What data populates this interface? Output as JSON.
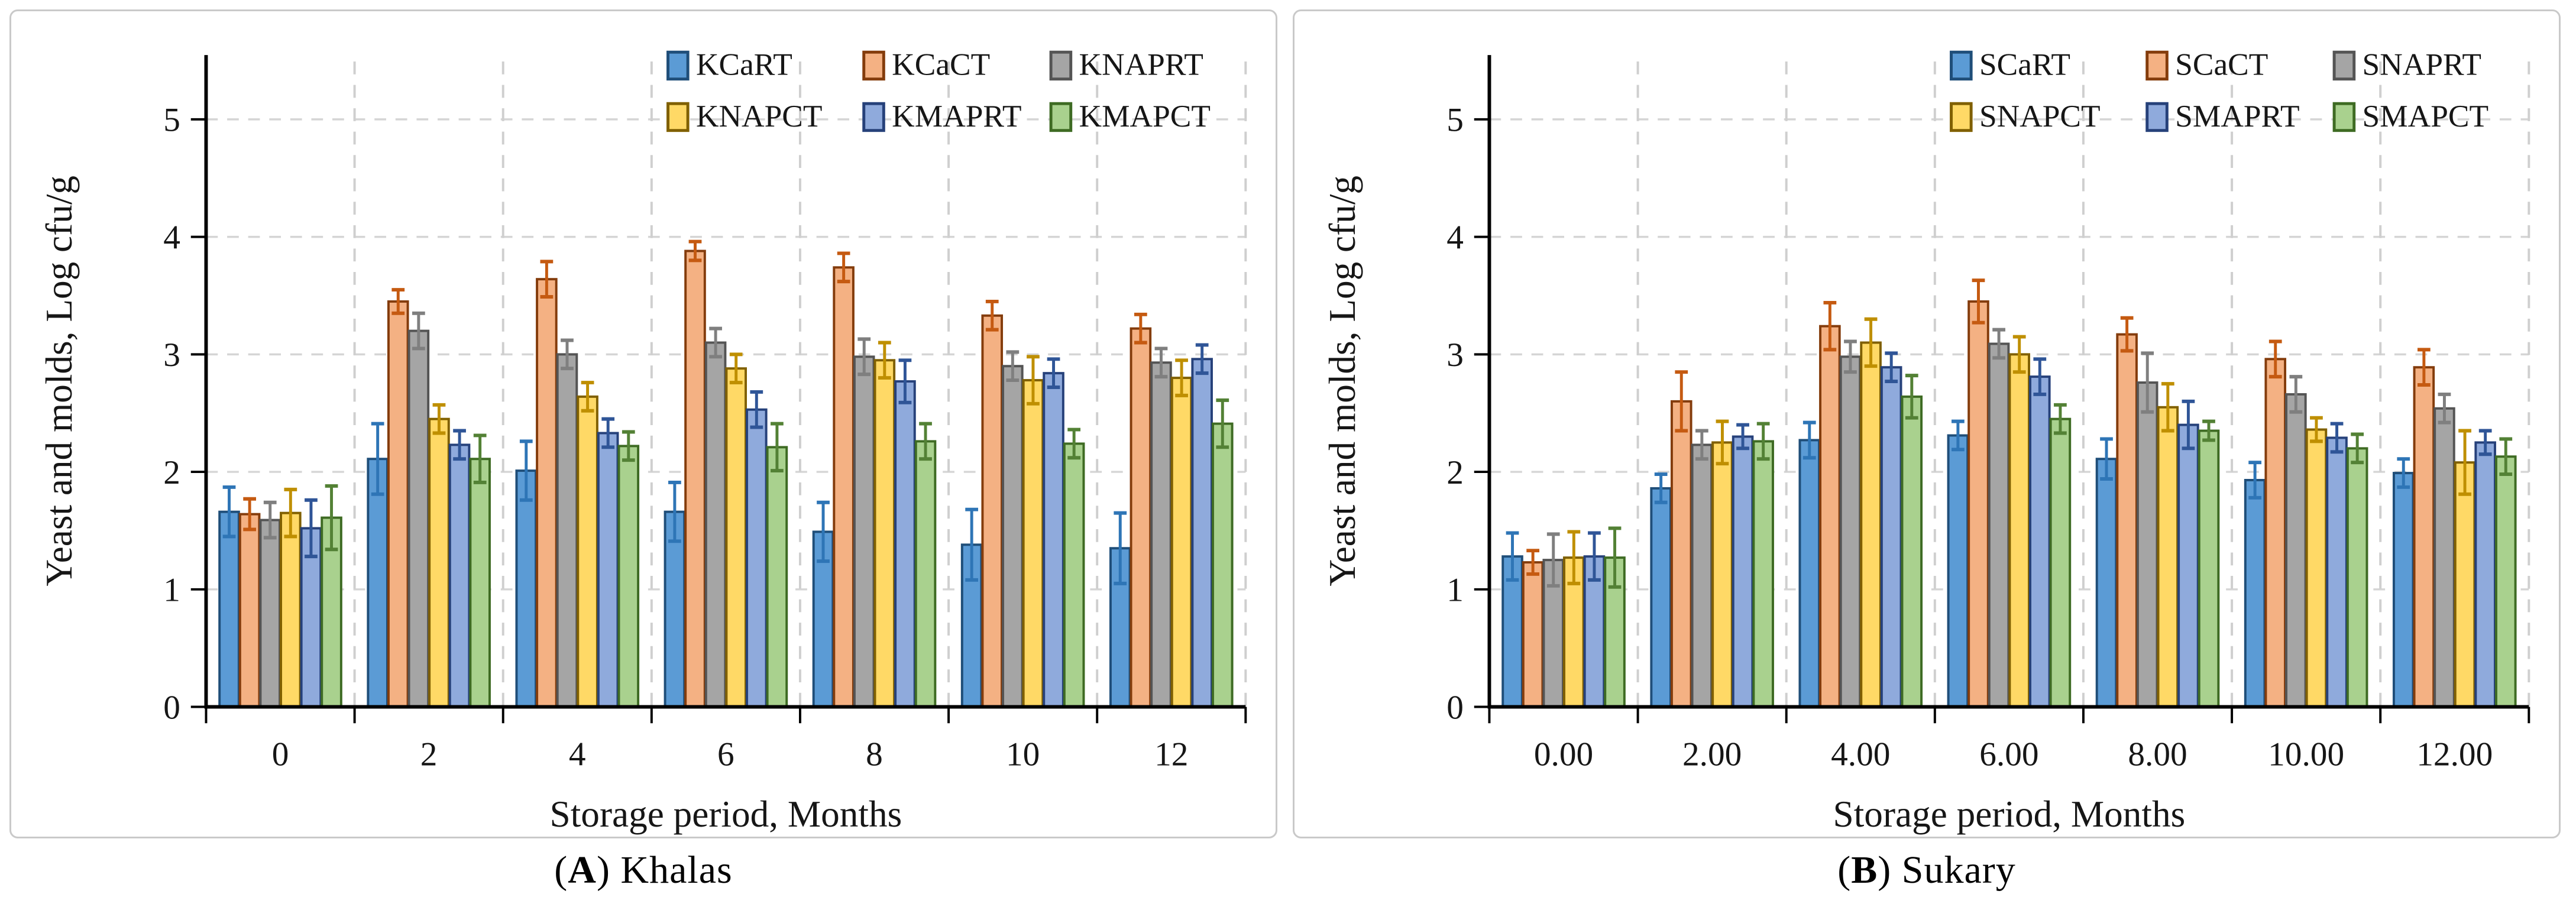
{
  "figure": {
    "panels": [
      {
        "id": "A",
        "caption": {
          "paren_open": "(",
          "letter": "A",
          "paren_close": ")",
          "name": "Khalas"
        }
      },
      {
        "id": "B",
        "caption": {
          "paren_open": "(",
          "letter": "B",
          "paren_close": ")",
          "name": "Sukary"
        }
      }
    ]
  },
  "chart_data": [
    {
      "id": "A",
      "type": "bar",
      "title": "",
      "xlabel": "Storage period,  Months",
      "ylabel": "Yeast and molds, Log cfu/g",
      "categories": [
        "0",
        "2",
        "4",
        "6",
        "8",
        "10",
        "12"
      ],
      "ylim": [
        0,
        5.5
      ],
      "yticks": [
        0,
        1,
        2,
        3,
        4,
        5
      ],
      "grid": {
        "horizontal": "dashed",
        "vertical": "dashed"
      },
      "legend": {
        "position": "top-right",
        "rows": 2,
        "columns": 3
      },
      "series": [
        {
          "name": "KCaRT",
          "fill": "#5B9BD5",
          "edge": "#1F4E79",
          "err": "#2E75B6",
          "values": [
            1.66,
            2.11,
            2.01,
            1.66,
            1.49,
            1.38,
            1.35
          ],
          "errors": [
            0.21,
            0.3,
            0.25,
            0.25,
            0.25,
            0.3,
            0.3
          ]
        },
        {
          "name": "KCaCT",
          "fill": "#F4B183",
          "edge": "#843C0C",
          "err": "#C55A11",
          "values": [
            1.64,
            3.45,
            3.64,
            3.88,
            3.74,
            3.33,
            3.22
          ],
          "errors": [
            0.13,
            0.1,
            0.15,
            0.08,
            0.12,
            0.12,
            0.12
          ]
        },
        {
          "name": "KNAPRT",
          "fill": "#A5A5A5",
          "edge": "#545454",
          "err": "#7F7F7F",
          "values": [
            1.59,
            3.2,
            3.0,
            3.1,
            2.98,
            2.9,
            2.93
          ],
          "errors": [
            0.15,
            0.15,
            0.12,
            0.12,
            0.15,
            0.12,
            0.12
          ]
        },
        {
          "name": "KNAPCT",
          "fill": "#FFD966",
          "edge": "#806000",
          "err": "#BF8F00",
          "values": [
            1.65,
            2.45,
            2.64,
            2.88,
            2.95,
            2.78,
            2.8
          ],
          "errors": [
            0.2,
            0.12,
            0.12,
            0.12,
            0.15,
            0.2,
            0.15
          ]
        },
        {
          "name": "KMAPRT",
          "fill": "#8FAADC",
          "edge": "#26417A",
          "err": "#2F5597",
          "values": [
            1.52,
            2.23,
            2.33,
            2.53,
            2.77,
            2.84,
            2.96
          ],
          "errors": [
            0.24,
            0.12,
            0.12,
            0.15,
            0.18,
            0.12,
            0.12
          ]
        },
        {
          "name": "KMAPCT",
          "fill": "#A9D18E",
          "edge": "#3E6B23",
          "err": "#538135",
          "values": [
            1.61,
            2.11,
            2.22,
            2.21,
            2.26,
            2.24,
            2.41
          ],
          "errors": [
            0.27,
            0.2,
            0.12,
            0.2,
            0.15,
            0.12,
            0.2
          ]
        }
      ]
    },
    {
      "id": "B",
      "type": "bar",
      "title": "",
      "xlabel": "Storage period,  Months",
      "ylabel": "Yeast and molds, Log cfu/g",
      "categories": [
        "0.00",
        "2.00",
        "4.00",
        "6.00",
        "8.00",
        "10.00",
        "12.00"
      ],
      "ylim": [
        0,
        5.5
      ],
      "yticks": [
        0,
        1,
        2,
        3,
        4,
        5
      ],
      "grid": {
        "horizontal": "dashed",
        "vertical": "dashed"
      },
      "legend": {
        "position": "top-right",
        "rows": 2,
        "columns": 3
      },
      "series": [
        {
          "name": "SCaRT",
          "fill": "#5B9BD5",
          "edge": "#1F4E79",
          "err": "#2E75B6",
          "values": [
            1.28,
            1.86,
            2.27,
            2.31,
            2.11,
            1.93,
            1.99
          ],
          "errors": [
            0.2,
            0.12,
            0.15,
            0.12,
            0.17,
            0.15,
            0.12
          ]
        },
        {
          "name": "SCaCT",
          "fill": "#F4B183",
          "edge": "#843C0C",
          "err": "#C55A11",
          "values": [
            1.23,
            2.6,
            3.24,
            3.45,
            3.17,
            2.96,
            2.89
          ],
          "errors": [
            0.1,
            0.25,
            0.2,
            0.18,
            0.14,
            0.15,
            0.15
          ]
        },
        {
          "name": "SNAPRT",
          "fill": "#A5A5A5",
          "edge": "#545454",
          "err": "#7F7F7F",
          "values": [
            1.25,
            2.23,
            2.98,
            3.09,
            2.76,
            2.66,
            2.54
          ],
          "errors": [
            0.22,
            0.12,
            0.13,
            0.12,
            0.25,
            0.15,
            0.12
          ]
        },
        {
          "name": "SNAPCT",
          "fill": "#FFD966",
          "edge": "#806000",
          "err": "#BF8F00",
          "values": [
            1.27,
            2.25,
            3.1,
            3.0,
            2.55,
            2.36,
            2.08
          ],
          "errors": [
            0.22,
            0.18,
            0.2,
            0.15,
            0.2,
            0.1,
            0.27
          ]
        },
        {
          "name": "SMAPRT",
          "fill": "#8FAADC",
          "edge": "#26417A",
          "err": "#2F5597",
          "values": [
            1.28,
            2.3,
            2.89,
            2.81,
            2.4,
            2.29,
            2.25
          ],
          "errors": [
            0.2,
            0.1,
            0.12,
            0.15,
            0.2,
            0.12,
            0.1
          ]
        },
        {
          "name": "SMAPCT",
          "fill": "#A9D18E",
          "edge": "#3E6B23",
          "err": "#538135",
          "values": [
            1.27,
            2.26,
            2.64,
            2.45,
            2.35,
            2.2,
            2.13
          ],
          "errors": [
            0.25,
            0.15,
            0.18,
            0.12,
            0.08,
            0.12,
            0.15
          ]
        }
      ]
    }
  ]
}
